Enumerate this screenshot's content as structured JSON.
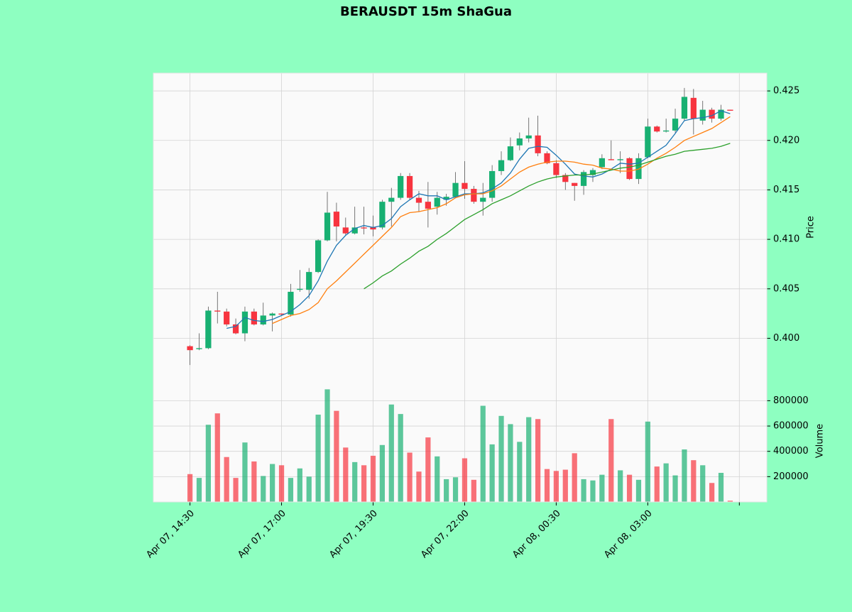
{
  "chart_data": {
    "type": "candlestick",
    "title": "BERAUSDT 15m ShaGua",
    "ylabel": "Price",
    "up_color": "#18b072",
    "down_color": "#f7343f",
    "background": "#8effc1",
    "grid": true,
    "xlim": [
      -4,
      63
    ],
    "ylim": [
      0.3958,
      0.4268
    ],
    "yticks": [
      {
        "value": 0.4,
        "label": "0.400"
      },
      {
        "value": 0.405,
        "label": "0.405"
      },
      {
        "value": 0.41,
        "label": "0.410"
      },
      {
        "value": 0.415,
        "label": "0.415"
      },
      {
        "value": 0.42,
        "label": "0.420"
      },
      {
        "value": 0.425,
        "label": "0.425"
      }
    ],
    "xticks": [
      {
        "value": 0,
        "label": "Apr 07, 14:30"
      },
      {
        "value": 10,
        "label": "Apr 07, 17:00"
      },
      {
        "value": 20,
        "label": "Apr 07, 19:30"
      },
      {
        "value": 30,
        "label": "Apr 07, 22:00"
      },
      {
        "value": 40,
        "label": "Apr 08, 00:30"
      },
      {
        "value": 50,
        "label": "Apr 08, 03:00"
      },
      {
        "value": 60,
        "label": null
      }
    ],
    "open": [
      0.3992,
      0.3989,
      0.399,
      0.4028,
      0.4027,
      0.4014,
      0.4005,
      0.4027,
      0.4014,
      0.4023,
      0.4025,
      0.4024,
      0.4049,
      0.4049,
      0.4067,
      0.4099,
      0.4128,
      0.4112,
      0.4106,
      0.4112,
      0.4112,
      0.4112,
      0.4138,
      0.4142,
      0.4164,
      0.4142,
      0.4138,
      0.4133,
      0.414,
      0.4143,
      0.4157,
      0.4151,
      0.4138,
      0.4142,
      0.4169,
      0.418,
      0.4195,
      0.4202,
      0.4205,
      0.4187,
      0.4177,
      0.4165,
      0.4157,
      0.4154,
      0.4165,
      0.4173,
      0.4181,
      0.418,
      0.4182,
      0.4161,
      0.4183,
      0.4214,
      0.4209,
      0.421,
      0.4222,
      0.4243,
      0.422,
      0.4231,
      0.4222,
      0.4231
    ],
    "high": [
      0.3993,
      0.4005,
      0.4032,
      0.4047,
      0.403,
      0.402,
      0.4032,
      0.403,
      0.4036,
      0.4026,
      0.4025,
      0.4055,
      0.4069,
      0.4071,
      0.41,
      0.4148,
      0.4137,
      0.4122,
      0.4133,
      0.4133,
      0.4124,
      0.414,
      0.4152,
      0.4167,
      0.4167,
      0.4149,
      0.4158,
      0.4148,
      0.4146,
      0.4168,
      0.4179,
      0.4154,
      0.4157,
      0.4175,
      0.4189,
      0.4203,
      0.4208,
      0.4223,
      0.4225,
      0.4189,
      0.418,
      0.4167,
      0.4157,
      0.417,
      0.4172,
      0.4186,
      0.42,
      0.4189,
      0.4183,
      0.4187,
      0.4222,
      0.4215,
      0.4222,
      0.4232,
      0.4253,
      0.4252,
      0.424,
      0.4233,
      0.4236,
      0.4231
    ],
    "low": [
      0.3973,
      0.3988,
      0.3989,
      0.4015,
      0.4012,
      0.4004,
      0.3997,
      0.4013,
      0.4013,
      0.4007,
      0.4023,
      0.4022,
      0.4047,
      0.404,
      0.4066,
      0.4098,
      0.4098,
      0.4104,
      0.4105,
      0.4105,
      0.4103,
      0.411,
      0.4113,
      0.414,
      0.414,
      0.4128,
      0.4112,
      0.4125,
      0.4134,
      0.4142,
      0.4141,
      0.4136,
      0.4124,
      0.4138,
      0.4165,
      0.4179,
      0.419,
      0.4198,
      0.4184,
      0.4176,
      0.4162,
      0.415,
      0.4139,
      0.4145,
      0.4158,
      0.4171,
      0.418,
      0.4167,
      0.416,
      0.4156,
      0.4182,
      0.4208,
      0.4208,
      0.4208,
      0.422,
      0.4206,
      0.4216,
      0.4218,
      0.422,
      0.423
    ],
    "close": [
      0.3988,
      0.399,
      0.4028,
      0.4027,
      0.4014,
      0.4005,
      0.4027,
      0.4014,
      0.4023,
      0.4025,
      0.4024,
      0.4047,
      0.405,
      0.4067,
      0.4099,
      0.4127,
      0.4113,
      0.4106,
      0.4112,
      0.4111,
      0.411,
      0.4138,
      0.4142,
      0.4164,
      0.4142,
      0.4137,
      0.4131,
      0.4142,
      0.4143,
      0.4157,
      0.4151,
      0.4138,
      0.4142,
      0.4169,
      0.418,
      0.4194,
      0.4202,
      0.4205,
      0.4187,
      0.4177,
      0.4165,
      0.4158,
      0.4154,
      0.4168,
      0.417,
      0.4182,
      0.418,
      0.4181,
      0.4161,
      0.4182,
      0.4214,
      0.4209,
      0.421,
      0.4222,
      0.4244,
      0.4222,
      0.4231,
      0.4222,
      0.4231,
      0.423
    ],
    "ma": [
      {
        "color": "#1f77b4",
        "values": [
          null,
          null,
          null,
          null,
          0.401,
          0.4012,
          0.4021,
          0.4018,
          0.4017,
          0.4019,
          0.4023,
          0.4027,
          0.4034,
          0.4043,
          0.4058,
          0.4078,
          0.4094,
          0.4104,
          0.4111,
          0.4114,
          0.4112,
          0.4114,
          0.4121,
          0.4133,
          0.414,
          0.4146,
          0.4144,
          0.4144,
          0.414,
          0.4143,
          0.4146,
          0.4146,
          0.4147,
          0.4151,
          0.4157,
          0.4167,
          0.4181,
          0.4192,
          0.4194,
          0.4193,
          0.4185,
          0.4176,
          0.4166,
          0.4164,
          0.4163,
          0.4166,
          0.4171,
          0.4177,
          0.4176,
          0.4177,
          0.4183,
          0.4189,
          0.4195,
          0.4207,
          0.422,
          0.4222,
          0.4223,
          0.4225,
          0.423,
          0.4227
        ]
      },
      {
        "color": "#ff7f0e",
        "values": [
          null,
          null,
          null,
          null,
          null,
          null,
          null,
          null,
          null,
          0.4015,
          0.4019,
          0.4023,
          0.4025,
          0.4029,
          0.4036,
          0.405,
          0.4058,
          0.4067,
          0.4076,
          0.4085,
          0.4094,
          0.4103,
          0.4112,
          0.4123,
          0.4127,
          0.4128,
          0.413,
          0.4132,
          0.4136,
          0.4142,
          0.4145,
          0.4146,
          0.4146,
          0.4149,
          0.4154,
          0.4161,
          0.4168,
          0.4173,
          0.4176,
          0.4178,
          0.4179,
          0.4179,
          0.4178,
          0.4176,
          0.4175,
          0.4172,
          0.4171,
          0.4169,
          0.4169,
          0.4171,
          0.4176,
          0.4182,
          0.4187,
          0.4193,
          0.42,
          0.4204,
          0.4208,
          0.4212,
          0.4218,
          0.4224
        ]
      },
      {
        "color": "#2ca02c",
        "values": [
          null,
          null,
          null,
          null,
          null,
          null,
          null,
          null,
          null,
          null,
          null,
          null,
          null,
          null,
          null,
          null,
          null,
          null,
          null,
          0.405,
          0.4056,
          0.4063,
          0.4068,
          0.4075,
          0.4081,
          0.4088,
          0.4093,
          0.41,
          0.4106,
          0.4113,
          0.412,
          0.4125,
          0.413,
          0.4136,
          0.414,
          0.4144,
          0.4149,
          0.4154,
          0.4158,
          0.4161,
          0.4163,
          0.4164,
          0.4165,
          0.4165,
          0.4166,
          0.4168,
          0.417,
          0.4172,
          0.4173,
          0.4175,
          0.4178,
          0.4181,
          0.4184,
          0.4186,
          0.4189,
          0.419,
          0.4191,
          0.4192,
          0.4194,
          0.4197
        ]
      }
    ],
    "volume": {
      "ylabel": "Volume",
      "ylim": [
        0,
        965000
      ],
      "yticks": [
        200000,
        400000,
        600000,
        800000
      ],
      "values": [
        220000,
        190000,
        610000,
        700000,
        355000,
        190000,
        470000,
        320000,
        205000,
        300000,
        290000,
        190000,
        265000,
        200000,
        690000,
        890000,
        720000,
        430000,
        315000,
        290000,
        365000,
        450000,
        770000,
        695000,
        390000,
        240000,
        510000,
        360000,
        180000,
        195000,
        345000,
        175000,
        760000,
        455000,
        680000,
        615000,
        475000,
        670000,
        655000,
        260000,
        245000,
        255000,
        385000,
        180000,
        170000,
        215000,
        655000,
        250000,
        215000,
        175000,
        635000,
        280000,
        305000,
        210000,
        415000,
        330000,
        290000,
        150000,
        230000,
        10000
      ]
    }
  }
}
